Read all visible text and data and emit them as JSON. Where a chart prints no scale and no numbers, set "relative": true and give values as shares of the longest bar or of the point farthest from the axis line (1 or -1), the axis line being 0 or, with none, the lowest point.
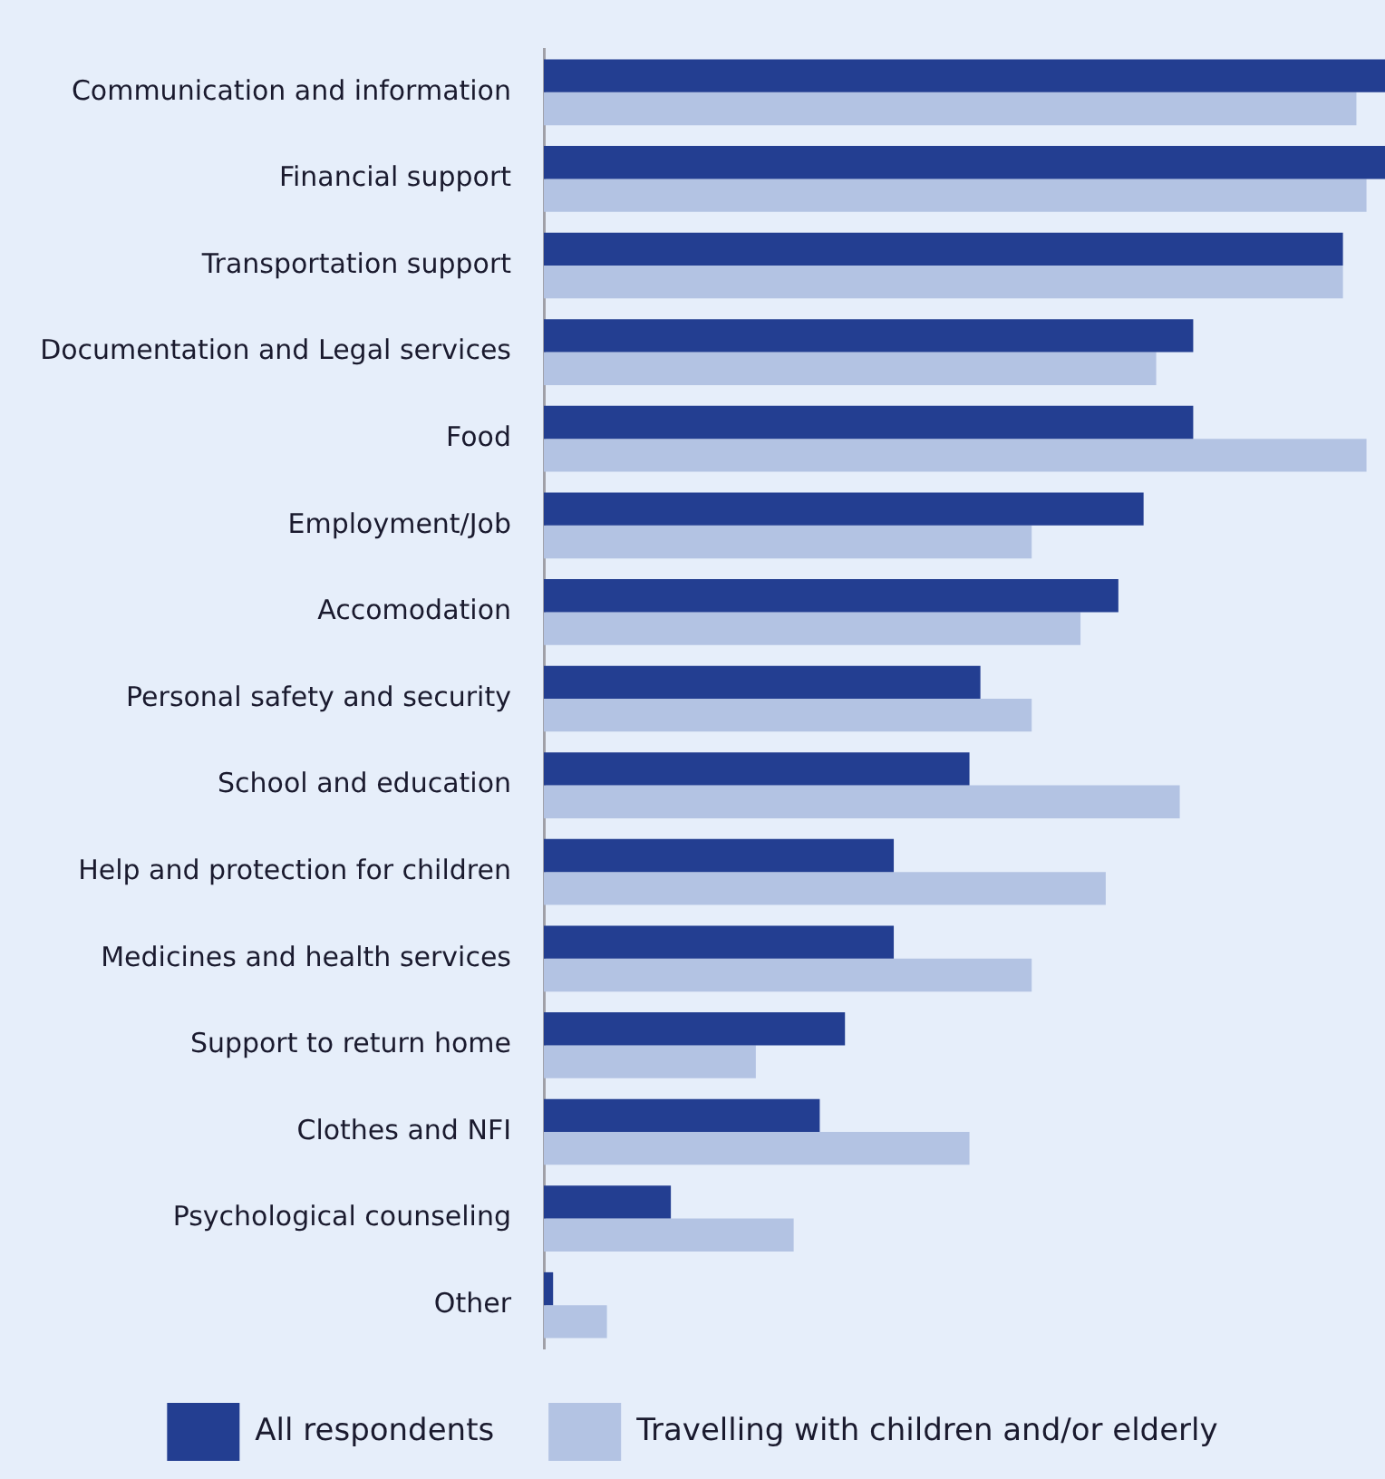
{
  "chart_data": {
    "type": "bar",
    "orientation": "horizontal",
    "relative": true,
    "legend": "bottom",
    "categories": [
      "Communication and information",
      "Financial support",
      "Transportation support",
      "Documentation and Legal services",
      "Food",
      "Employment/Job",
      "Accomodation",
      "Personal safety and security",
      "School and education",
      "Help and protection for children",
      "Medicines and health services",
      "Support to return home",
      "Clothes and NFI",
      "Psychological counseling",
      "Other"
    ],
    "series": [
      {
        "name": "All respondents",
        "color": "#233e91",
        "values": [
          1.0,
          1.0,
          0.95,
          0.772,
          0.772,
          0.713,
          0.683,
          0.519,
          0.506,
          0.416,
          0.416,
          0.358,
          0.328,
          0.151,
          0.011
        ]
      },
      {
        "name": "Travelling with children and/or elderly",
        "color": "#b3c3e3",
        "values": [
          0.966,
          0.978,
          0.95,
          0.728,
          0.978,
          0.58,
          0.638,
          0.58,
          0.756,
          0.668,
          0.58,
          0.252,
          0.506,
          0.297,
          0.075
        ]
      }
    ]
  }
}
